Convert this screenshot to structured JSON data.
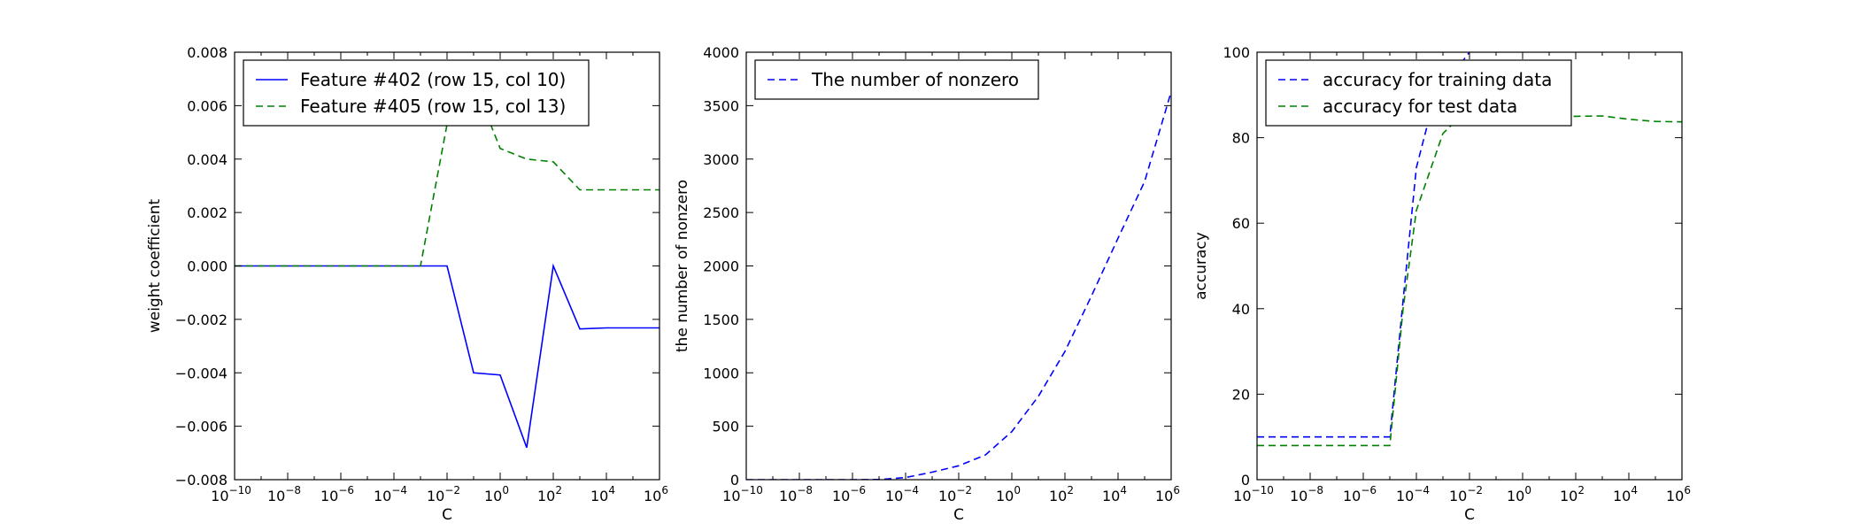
{
  "chart_data": [
    {
      "type": "line",
      "title": "",
      "xlabel": "C",
      "ylabel": "weight coefficient",
      "xscale": "log",
      "xlim_exp": [
        -10,
        6
      ],
      "ylim": [
        -0.008,
        0.008
      ],
      "x_tick_exponents": [
        -10,
        -8,
        -6,
        -4,
        -2,
        0,
        2,
        4,
        6
      ],
      "y_ticks": [
        "0.008",
        "0.006",
        "0.004",
        "0.002",
        "0.000",
        "−0.002",
        "−0.004",
        "−0.006",
        "−0.008"
      ],
      "y_tick_values": [
        0.008,
        0.006,
        0.004,
        0.002,
        0.0,
        -0.002,
        -0.004,
        -0.006,
        -0.008
      ],
      "legend_position": "upper-left",
      "grid": false,
      "x_exponents": [
        -10,
        -9,
        -8,
        -7,
        -6,
        -5,
        -4,
        -3,
        -2,
        -1,
        0,
        1,
        2,
        3,
        4,
        5,
        6
      ],
      "series": [
        {
          "name": "Feature #402 (row 15, col 10)",
          "color": "#0000ff",
          "dash": "solid",
          "values": [
            0,
            0,
            0,
            0,
            0,
            0,
            0,
            0,
            0,
            -0.004,
            -0.00408,
            -0.0068,
            0.0,
            -0.00236,
            -0.00232,
            -0.00232,
            -0.00232
          ]
        },
        {
          "name": "Feature #405 (row 15, col 13)",
          "color": "#008000",
          "dash": "dashed",
          "values": [
            0,
            0,
            0,
            0,
            0,
            0,
            0,
            0.0,
            0.0053,
            0.0069,
            0.0044,
            0.004,
            0.0039,
            0.00285,
            0.00285,
            0.00285,
            0.00285
          ]
        }
      ]
    },
    {
      "type": "line",
      "title": "",
      "xlabel": "C",
      "ylabel": "the number of nonzero",
      "xscale": "log",
      "xlim_exp": [
        -10,
        6
      ],
      "ylim": [
        0,
        4000
      ],
      "x_tick_exponents": [
        -10,
        -8,
        -6,
        -4,
        -2,
        0,
        2,
        4,
        6
      ],
      "y_ticks": [
        "0",
        "500",
        "1000",
        "1500",
        "2000",
        "2500",
        "3000",
        "3500",
        "4000"
      ],
      "y_tick_values": [
        0,
        500,
        1000,
        1500,
        2000,
        2500,
        3000,
        3500,
        4000
      ],
      "legend_position": "upper-left",
      "grid": false,
      "x_exponents": [
        -10,
        -9,
        -8,
        -7,
        -6,
        -5,
        -4,
        -3,
        -2,
        -1,
        0,
        1,
        2,
        3,
        4,
        5,
        6
      ],
      "series": [
        {
          "name": "The number of nonzero",
          "color": "#0000ff",
          "dash": "dashed",
          "values": [
            0,
            0,
            0,
            0,
            0,
            2,
            20,
            70,
            130,
            230,
            450,
            780,
            1200,
            1720,
            2260,
            2790,
            3630
          ]
        }
      ]
    },
    {
      "type": "line",
      "title": "",
      "xlabel": "C",
      "ylabel": "accuracy",
      "xscale": "log",
      "xlim_exp": [
        -10,
        6
      ],
      "ylim": [
        0,
        100
      ],
      "x_tick_exponents": [
        -10,
        -8,
        -6,
        -4,
        -2,
        0,
        2,
        4,
        6
      ],
      "y_ticks": [
        "0",
        "20",
        "40",
        "60",
        "80",
        "100"
      ],
      "y_tick_values": [
        0,
        20,
        40,
        60,
        80,
        100
      ],
      "legend_position": "upper-left",
      "grid": false,
      "series": [
        {
          "name": "accuracy for training data",
          "color": "#0000ff",
          "dash": "dashed",
          "x_exponents": [
            -10,
            -9,
            -8,
            -7,
            -6,
            -5,
            -4.5,
            -4,
            -3.5,
            -3,
            -2.5,
            -2
          ],
          "values": [
            10,
            10,
            10,
            10,
            10,
            10,
            42,
            73,
            85,
            91,
            96,
            100
          ]
        },
        {
          "name": "accuracy for test data",
          "color": "#008000",
          "dash": "dashed",
          "x_exponents": [
            -10,
            -9,
            -8,
            -7,
            -6,
            -5,
            -4.5,
            -4,
            -3.5,
            -3,
            -2.5,
            -2,
            -1,
            0,
            1,
            2,
            3,
            4,
            5,
            6
          ],
          "values": [
            8,
            8,
            8,
            8,
            8,
            8,
            40,
            63,
            72,
            81,
            84,
            84.5,
            84.7,
            84.8,
            84.9,
            85,
            85.1,
            84.3,
            83.8,
            83.7
          ]
        }
      ]
    }
  ]
}
